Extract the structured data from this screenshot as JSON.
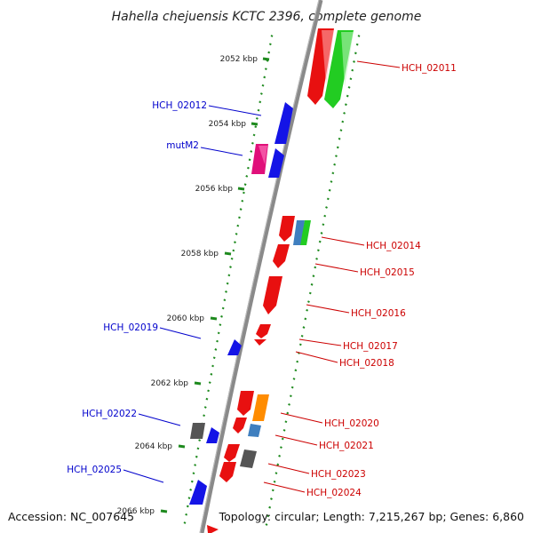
{
  "title": "Hahella chejuensis KCTC 2396, complete genome",
  "colors": {
    "backbone": "#8a8a8a",
    "tick": "#1e8a1e",
    "gene_red": "#e81010",
    "gene_blue": "#1414e6",
    "gene_green": "#22cc22",
    "gene_magenta": "#e0107a",
    "gene_orange": "#ff8c00",
    "gene_steel": "#3f7fbf",
    "gene_gray": "#555555",
    "label_right": "#cc0000",
    "label_left": "#0000cc"
  },
  "kbp_labels": [
    "2052 kbp",
    "2054 kbp",
    "2056 kbp",
    "2058 kbp",
    "2060 kbp",
    "2062 kbp",
    "2064 kbp",
    "2066 kbp"
  ],
  "genes_right": [
    "HCH_02011",
    "HCH_02014",
    "HCH_02015",
    "HCH_02016",
    "HCH_02017",
    "HCH_02018",
    "HCH_02020",
    "HCH_02021",
    "HCH_02023",
    "HCH_02024"
  ],
  "genes_left": [
    "HCH_02012",
    "mutM2",
    "HCH_02019",
    "HCH_02022",
    "HCH_02025"
  ],
  "footer": {
    "accession": "Accession: NC_007645",
    "summary": "Topology: circular; Length: 7,215,267 bp; Genes: 6,860"
  }
}
